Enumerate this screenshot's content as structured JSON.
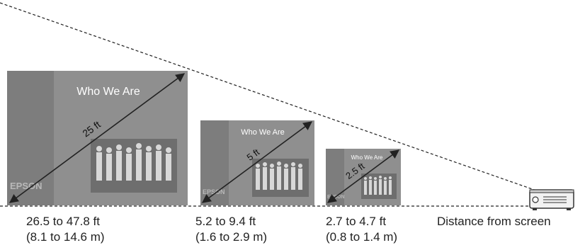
{
  "screens": [
    {
      "title": "Who We Are",
      "brand": "EPSON",
      "diagonal": "25 ft",
      "distance": "26.5 to 47.8 ft",
      "distance_metric": "(8.1 to 14.6 m)"
    },
    {
      "title": "Who We Are",
      "brand": "EPSON",
      "diagonal": "5 ft",
      "distance": "5.2 to 9.4 ft",
      "distance_metric": "(1.6 to 2.9 m)"
    },
    {
      "title": "Who We Are",
      "brand": "EPSON",
      "diagonal": "2.5 ft",
      "distance": "2.7 to 4.7 ft",
      "distance_metric": "(0.8 to 1.4 m)"
    }
  ],
  "axis_label": "Distance from screen",
  "colors": {
    "screen_gray": "#8f8f8f",
    "side_band": "#7d7d7d",
    "photo": "#6e6e6e",
    "line": "#222222"
  }
}
